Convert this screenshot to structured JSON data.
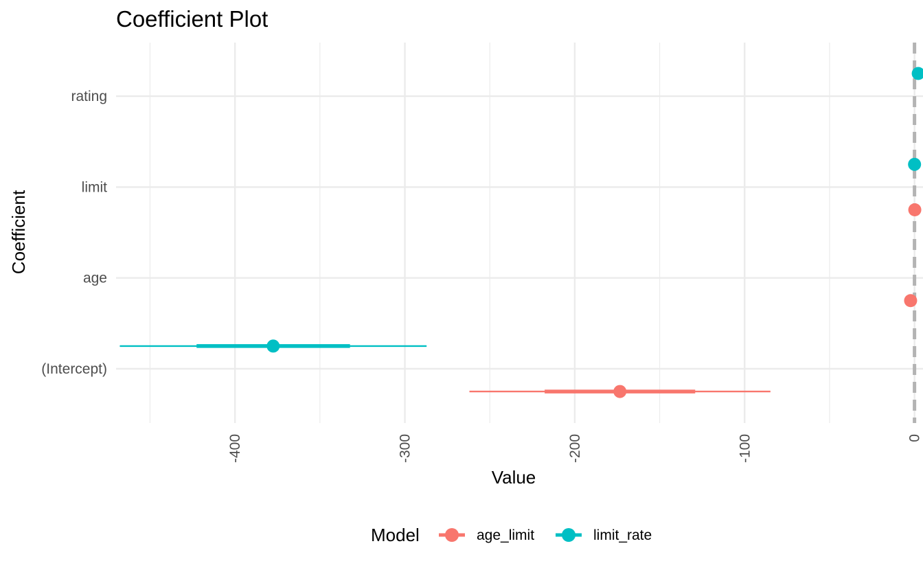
{
  "chart_data": {
    "type": "coefficient_plot",
    "title": "Coefficient Plot",
    "xlabel": "Value",
    "ylabel": "Coefficient",
    "xlim": [
      -470,
      5
    ],
    "x_ticks": [
      -400,
      -300,
      -200,
      -100,
      0
    ],
    "categories": [
      "(Intercept)",
      "age",
      "limit",
      "rating"
    ],
    "reference_line": 0,
    "grid": true,
    "legend": {
      "title": "Model",
      "position": "bottom"
    },
    "series": [
      {
        "name": "age_limit",
        "color": "#F8766D",
        "offset": -0.25,
        "points": [
          {
            "coefficient": "(Intercept)",
            "value": -173.4,
            "inner": [
              -217.7,
              -129.1
            ],
            "outer": [
              -262.0,
              -84.8
            ]
          },
          {
            "coefficient": "age",
            "value": -2.3,
            "inner": [
              -2.9,
              -1.7
            ],
            "outer": [
              -3.5,
              -1.1
            ]
          },
          {
            "coefficient": "limit",
            "value": 0.17,
            "inner": [
              0.17,
              0.18
            ],
            "outer": [
              0.16,
              0.18
            ]
          }
        ]
      },
      {
        "name": "limit_rate",
        "color": "#00BFC4",
        "offset": 0.25,
        "points": [
          {
            "coefficient": "(Intercept)",
            "value": -377.5,
            "inner": [
              -422.6,
              -332.3
            ],
            "outer": [
              -467.8,
              -287.2
            ]
          },
          {
            "coefficient": "limit",
            "value": 0.02,
            "inner": [
              -0.1,
              0.13
            ],
            "outer": [
              -0.2,
              0.24
            ]
          },
          {
            "coefficient": "rating",
            "value": 2.2,
            "inner": [
              0.9,
              3.5
            ],
            "outer": [
              -0.4,
              4.8
            ]
          }
        ]
      }
    ]
  }
}
